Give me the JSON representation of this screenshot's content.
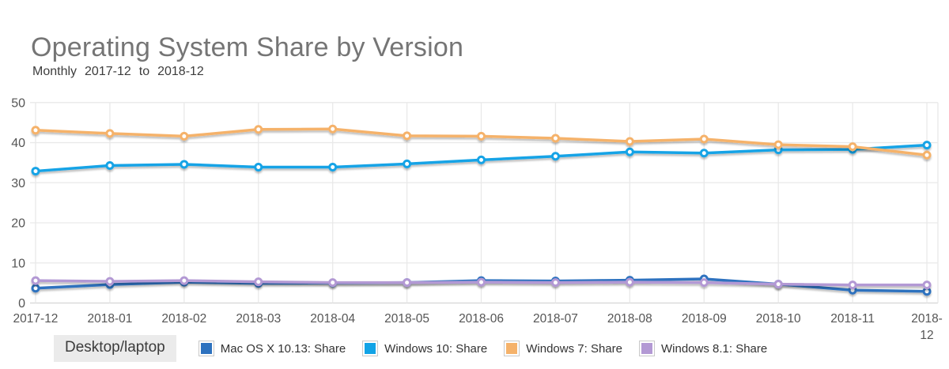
{
  "header": {
    "title": "Operating System Share by Version",
    "subtitle": {
      "frequency": "Monthly",
      "from": "2017-12",
      "to_word": "to",
      "to": "2018-12"
    }
  },
  "legend": {
    "device_label": "Desktop/laptop"
  },
  "chart_data": {
    "type": "line",
    "title": "Operating System Share by Version",
    "subtitle": "Monthly 2017-12 to 2018-12",
    "categories": [
      "2017-12",
      "2018-01",
      "2018-02",
      "2018-03",
      "2018-04",
      "2018-05",
      "2018-06",
      "2018-07",
      "2018-08",
      "2018-09",
      "2018-10",
      "2018-11",
      "2018-12"
    ],
    "x_tick_labels": [
      [
        "2017-12"
      ],
      [
        "2018-01"
      ],
      [
        "2018-02"
      ],
      [
        "2018-03"
      ],
      [
        "2018-04"
      ],
      [
        "2018-05"
      ],
      [
        "2018-06"
      ],
      [
        "2018-07"
      ],
      [
        "2018-08"
      ],
      [
        "2018-09"
      ],
      [
        "2018-10"
      ],
      [
        "2018-11"
      ],
      [
        "2018-",
        "12"
      ]
    ],
    "yticks": [
      0,
      10,
      20,
      30,
      40,
      50
    ],
    "ylim": [
      0,
      50
    ],
    "grid": true,
    "legend_position": "bottom",
    "series": [
      {
        "name": "Mac OS X 10.13: Share",
        "color": "#2d72bf",
        "values": [
          3.7,
          4.6,
          5.2,
          4.9,
          5.0,
          5.1,
          5.6,
          5.5,
          5.7,
          6.0,
          4.7,
          3.2,
          2.9
        ]
      },
      {
        "name": "Windows 10: Share",
        "color": "#12a3e6",
        "values": [
          32.9,
          34.3,
          34.6,
          33.9,
          33.9,
          34.7,
          35.7,
          36.6,
          37.7,
          37.4,
          38.2,
          38.3,
          39.4
        ]
      },
      {
        "name": "Windows 7: Share",
        "color": "#f5b26b",
        "values": [
          43.1,
          42.3,
          41.6,
          43.3,
          43.4,
          41.7,
          41.6,
          41.1,
          40.3,
          40.9,
          39.5,
          39.0,
          36.9
        ]
      },
      {
        "name": "Windows 8.1: Share",
        "color": "#b399d4",
        "values": [
          5.6,
          5.4,
          5.6,
          5.3,
          5.1,
          5.1,
          5.2,
          5.1,
          5.2,
          5.1,
          4.7,
          4.5,
          4.5
        ]
      }
    ],
    "colors": {
      "grid_line": "#e9e9e9",
      "axis_line": "#d5d5d5",
      "tick_label": "#555555",
      "title": "#757575",
      "subtitle_text": "#3d3d3d"
    }
  }
}
